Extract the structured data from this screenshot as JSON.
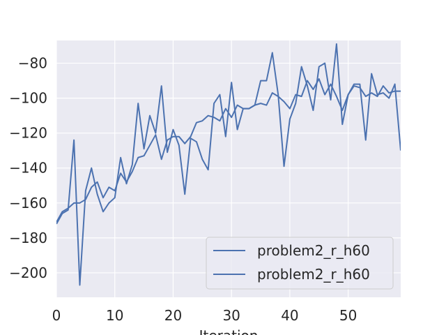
{
  "chart_data": {
    "type": "line",
    "title": "",
    "xlabel": "Iteration",
    "ylabel": "",
    "xlim": [
      0,
      59
    ],
    "ylim": [
      -214,
      -67
    ],
    "xticks": [
      0,
      10,
      20,
      30,
      40,
      50
    ],
    "yticks": [
      -200,
      -180,
      -160,
      -140,
      -120,
      -100,
      -80
    ],
    "grid": true,
    "legend_position": "lower-right",
    "series": [
      {
        "name": "problem2_r_h60",
        "color": "#4c72b0",
        "x": [
          0,
          1,
          2,
          3,
          4,
          5,
          6,
          7,
          8,
          9,
          10,
          11,
          12,
          13,
          14,
          15,
          16,
          17,
          18,
          19,
          20,
          21,
          22,
          23,
          24,
          25,
          26,
          27,
          28,
          29,
          30,
          31,
          32,
          33,
          34,
          35,
          36,
          37,
          38,
          39,
          40,
          41,
          42,
          43,
          44,
          45,
          46,
          47,
          48,
          49,
          50,
          51,
          52,
          53,
          54,
          55,
          56,
          57,
          58,
          59
        ],
        "values": [
          -172,
          -166,
          -164,
          -124,
          -207,
          -153,
          -140,
          -155,
          -165,
          -160,
          -157,
          -134,
          -149,
          -138,
          -103,
          -129,
          -110,
          -120,
          -93,
          -131,
          -118,
          -127,
          -155,
          -123,
          -125,
          -135,
          -141,
          -103,
          -98,
          -122,
          -91,
          -118,
          -106,
          -106,
          -104,
          -90,
          -90,
          -74,
          -98,
          -139,
          -112,
          -103,
          -82,
          -93,
          -107,
          -82,
          -80,
          -101,
          -69,
          -115,
          -98,
          -92,
          -92,
          -124,
          -86,
          -98,
          -97,
          -100,
          -92,
          -130
        ]
      },
      {
        "name": "problem2_r_h60",
        "color": "#4c72b0",
        "x": [
          0,
          1,
          2,
          3,
          4,
          5,
          6,
          7,
          8,
          9,
          10,
          11,
          12,
          13,
          14,
          15,
          16,
          17,
          18,
          19,
          20,
          21,
          22,
          23,
          24,
          25,
          26,
          27,
          28,
          29,
          30,
          31,
          32,
          33,
          34,
          35,
          36,
          37,
          38,
          39,
          40,
          41,
          42,
          43,
          44,
          45,
          46,
          47,
          48,
          49,
          50,
          51,
          52,
          53,
          54,
          55,
          56,
          57,
          58,
          59
        ],
        "values": [
          -171,
          -165,
          -163,
          -160,
          -160,
          -158,
          -151,
          -148,
          -157,
          -151,
          -153,
          -143,
          -148,
          -142,
          -134,
          -133,
          -127,
          -121,
          -135,
          -124,
          -122,
          -122,
          -126,
          -122,
          -114,
          -113,
          -110,
          -111,
          -113,
          -106,
          -111,
          -104,
          -106,
          -106,
          -104,
          -103,
          -104,
          -97,
          -99,
          -102,
          -106,
          -98,
          -99,
          -90,
          -95,
          -89,
          -98,
          -92,
          -99,
          -107,
          -98,
          -93,
          -94,
          -99,
          -97,
          -99,
          -93,
          -97,
          -96,
          -96
        ]
      }
    ]
  }
}
